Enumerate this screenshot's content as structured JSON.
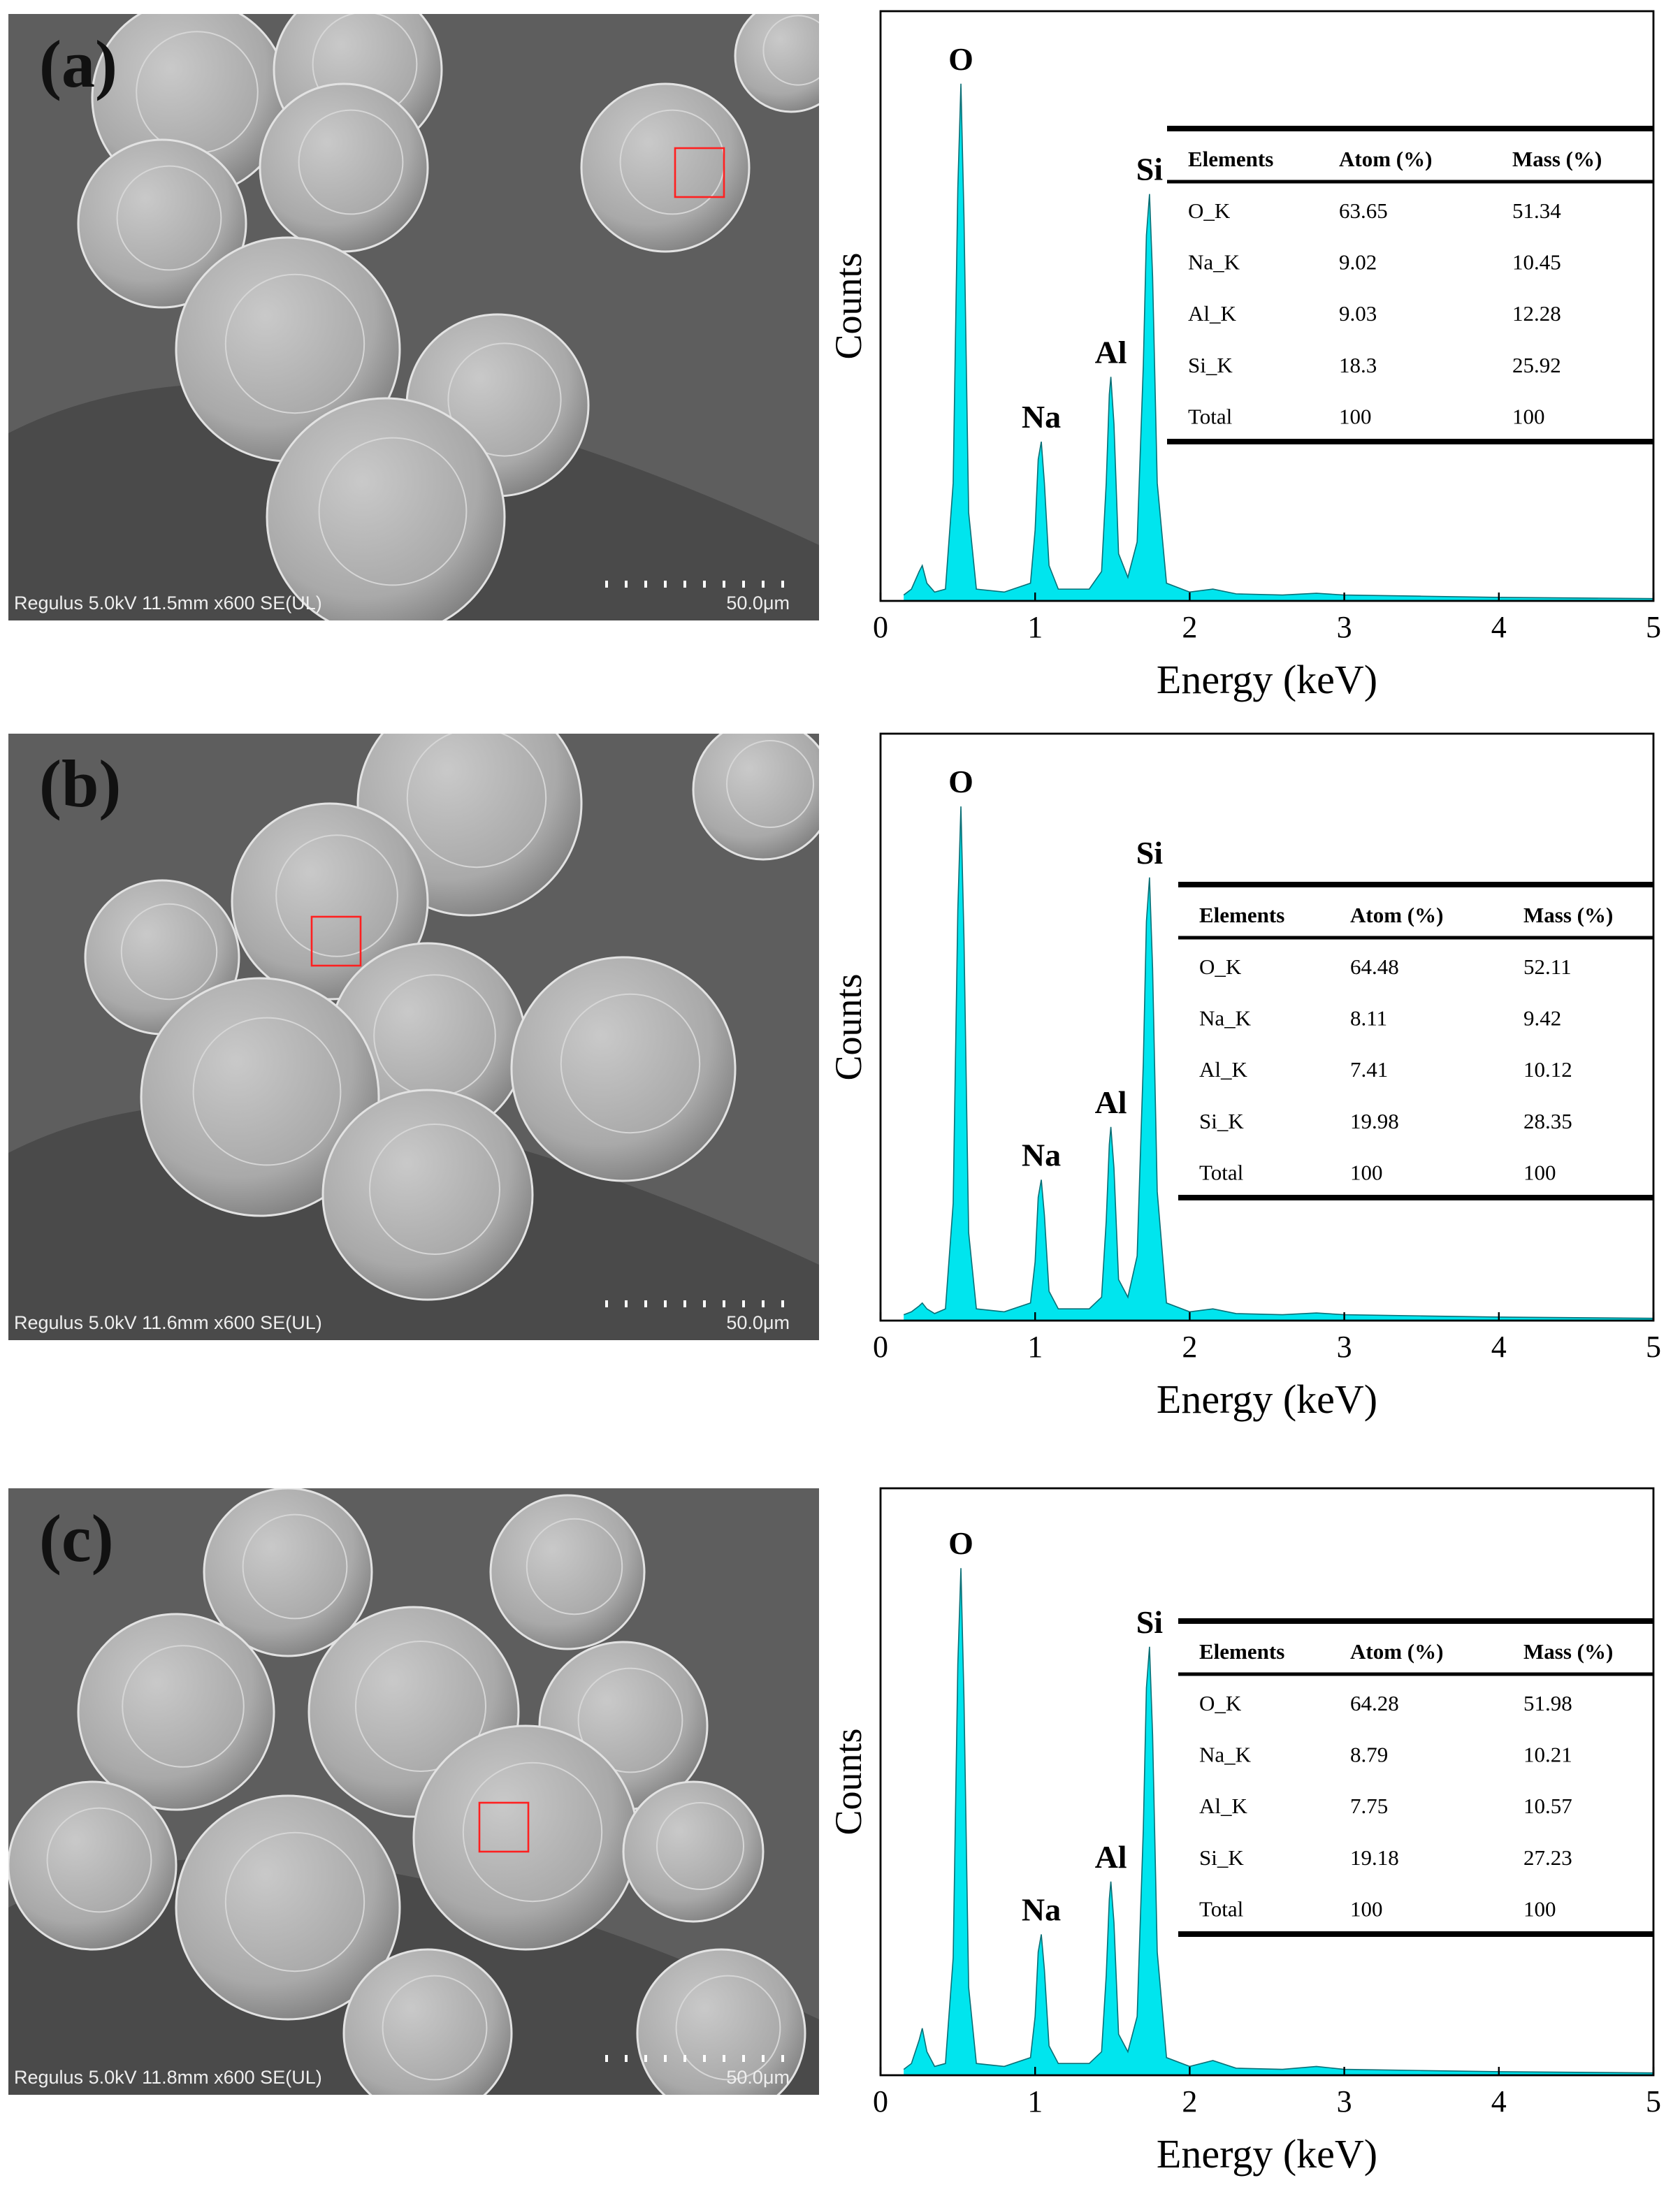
{
  "chart_data": [
    {
      "type": "area",
      "panel_label": "(a)",
      "image_caption": "Regulus  5.0kV 11.5mm x600 SE(UL)",
      "scale_bar": "50.0μm",
      "xlabel": "Energy (keV)",
      "ylabel": "Counts",
      "xlim": [
        0,
        5
      ],
      "xticks": [
        0,
        1,
        2,
        3,
        4,
        5
      ],
      "ylim": [
        0,
        100
      ],
      "color": "#00e5ee",
      "x": [
        0.15,
        0.2,
        0.25,
        0.27,
        0.3,
        0.35,
        0.42,
        0.47,
        0.5,
        0.52,
        0.54,
        0.57,
        0.62,
        0.8,
        0.97,
        1.0,
        1.02,
        1.04,
        1.06,
        1.09,
        1.15,
        1.35,
        1.43,
        1.46,
        1.48,
        1.49,
        1.51,
        1.54,
        1.6,
        1.66,
        1.7,
        1.72,
        1.74,
        1.76,
        1.79,
        1.85,
        2.0,
        2.15,
        2.3,
        2.6,
        2.82,
        3.0,
        3.5,
        4.0,
        4.5,
        5.0
      ],
      "values": [
        1,
        2,
        5,
        6,
        3,
        1.5,
        2,
        20,
        70,
        87.7,
        65,
        15,
        2,
        1.5,
        3,
        12,
        24,
        27,
        20,
        6,
        2,
        2,
        5,
        20,
        35,
        38,
        30,
        8,
        4,
        10,
        40,
        62,
        69,
        55,
        20,
        3,
        1.5,
        2,
        1.2,
        1,
        1.3,
        1,
        0.8,
        0.6,
        0.5,
        0.4
      ],
      "annotations": [
        {
          "text": "O",
          "x": 0.52
        },
        {
          "text": "Na",
          "x": 1.04
        },
        {
          "text": "Al",
          "x": 1.49
        },
        {
          "text": "Si",
          "x": 1.74
        }
      ],
      "table": {
        "header": [
          "Elements",
          "Atom (%)",
          "Mass (%)"
        ],
        "rows": [
          [
            "O_K",
            63.65,
            51.34
          ],
          [
            "Na_K",
            9.02,
            10.45
          ],
          [
            "Al_K",
            9.03,
            12.28
          ],
          [
            "Si_K",
            18.3,
            25.92
          ],
          [
            "Total",
            100,
            100
          ]
        ]
      }
    },
    {
      "type": "area",
      "panel_label": "(b)",
      "image_caption": "Regulus  5.0kV 11.6mm x600 SE(UL)",
      "scale_bar": "50.0μm",
      "xlabel": "Energy (keV)",
      "ylabel": "Counts",
      "xlim": [
        0,
        5
      ],
      "xticks": [
        0,
        1,
        2,
        3,
        4,
        5
      ],
      "ylim": [
        0,
        100
      ],
      "color": "#00e5ee",
      "x": [
        0.15,
        0.2,
        0.25,
        0.27,
        0.3,
        0.35,
        0.42,
        0.47,
        0.5,
        0.52,
        0.54,
        0.57,
        0.62,
        0.8,
        0.97,
        1.0,
        1.02,
        1.04,
        1.06,
        1.09,
        1.15,
        1.35,
        1.43,
        1.46,
        1.48,
        1.49,
        1.51,
        1.54,
        1.6,
        1.66,
        1.7,
        1.72,
        1.74,
        1.76,
        1.79,
        1.85,
        2.0,
        2.15,
        2.3,
        2.6,
        2.82,
        3.0,
        3.5,
        4.0,
        4.5,
        5.0
      ],
      "values": [
        1,
        1.5,
        2.5,
        3,
        2,
        1.2,
        2,
        20,
        70,
        87.6,
        65,
        15,
        2,
        1.5,
        3,
        10,
        21,
        24,
        18,
        5,
        2,
        2,
        4,
        17,
        30,
        33,
        26,
        7,
        4,
        11,
        44,
        68,
        75.5,
        60,
        22,
        3,
        1.5,
        2,
        1.2,
        1,
        1.3,
        1,
        0.8,
        0.6,
        0.5,
        0.4
      ],
      "annotations": [
        {
          "text": "O",
          "x": 0.52
        },
        {
          "text": "Na",
          "x": 1.04
        },
        {
          "text": "Al",
          "x": 1.49
        },
        {
          "text": "Si",
          "x": 1.74
        }
      ],
      "table": {
        "header": [
          "Elements",
          "Atom (%)",
          "Mass (%)"
        ],
        "rows": [
          [
            "O_K",
            64.48,
            52.11
          ],
          [
            "Na_K",
            8.11,
            9.42
          ],
          [
            "Al_K",
            7.41,
            10.12
          ],
          [
            "Si_K",
            19.98,
            28.35
          ],
          [
            "Total",
            100,
            100
          ]
        ]
      }
    },
    {
      "type": "area",
      "panel_label": "(c)",
      "image_caption": "Regulus  5.0kV 11.8mm x600 SE(UL)",
      "scale_bar": "50.0μm",
      "xlabel": "Energy (keV)",
      "ylabel": "Counts",
      "xlim": [
        0,
        5
      ],
      "xticks": [
        0,
        1,
        2,
        3,
        4,
        5
      ],
      "ylim": [
        0,
        100
      ],
      "color": "#00e5ee",
      "x": [
        0.15,
        0.2,
        0.25,
        0.27,
        0.3,
        0.35,
        0.42,
        0.47,
        0.5,
        0.52,
        0.54,
        0.57,
        0.62,
        0.8,
        0.97,
        1.0,
        1.02,
        1.04,
        1.06,
        1.09,
        1.15,
        1.35,
        1.43,
        1.46,
        1.48,
        1.49,
        1.51,
        1.54,
        1.6,
        1.66,
        1.7,
        1.72,
        1.74,
        1.76,
        1.79,
        1.85,
        2.0,
        2.15,
        2.3,
        2.6,
        2.82,
        3.0,
        3.5,
        4.0,
        4.5,
        5.0
      ],
      "values": [
        1,
        2,
        6,
        8,
        4,
        1.5,
        2,
        20,
        70,
        86.4,
        64,
        15,
        2,
        1.5,
        3,
        10,
        21,
        24,
        18,
        5,
        2,
        2,
        4,
        17,
        30,
        33,
        26,
        7,
        4,
        10,
        42,
        66,
        73,
        58,
        21,
        3,
        1.5,
        2.5,
        1.2,
        1,
        1.5,
        1,
        0.8,
        0.6,
        0.5,
        0.4
      ],
      "annotations": [
        {
          "text": "O",
          "x": 0.52
        },
        {
          "text": "Na",
          "x": 1.04
        },
        {
          "text": "Al",
          "x": 1.49
        },
        {
          "text": "Si",
          "x": 1.74
        }
      ],
      "table": {
        "header": [
          "Elements",
          "Atom (%)",
          "Mass (%)"
        ],
        "rows": [
          [
            "O_K",
            64.28,
            51.98
          ],
          [
            "Na_K",
            8.79,
            10.21
          ],
          [
            "Al_K",
            7.75,
            10.57
          ],
          [
            "Si_K",
            19.18,
            27.23
          ],
          [
            "Total",
            100,
            100
          ]
        ]
      }
    }
  ]
}
